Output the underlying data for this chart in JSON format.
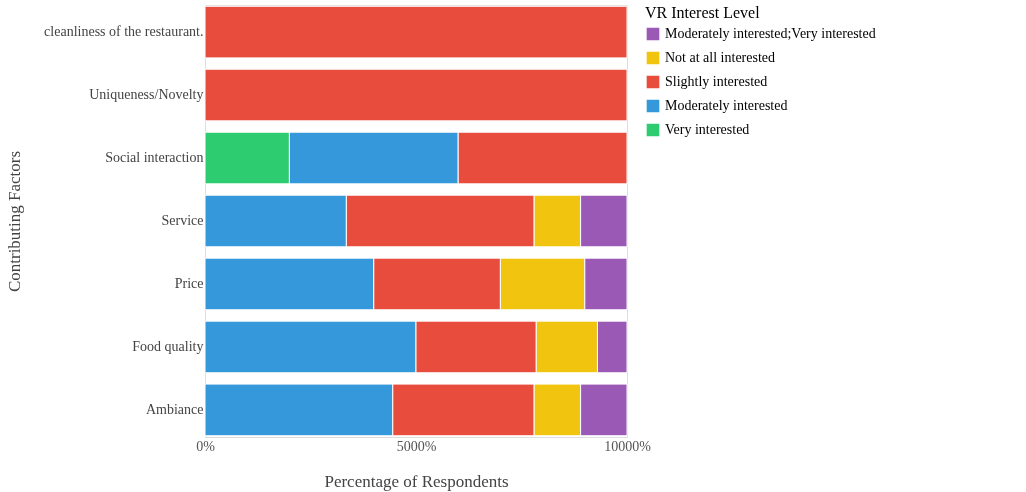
{
  "chart_data": {
    "type": "bar",
    "orientation": "horizontal",
    "stacked": true,
    "xlabel": "Percentage of Respondents",
    "ylabel": "Contributing Factors",
    "legend_title": "VR Interest Level",
    "categories": [
      "cleanliness of the restaurant.",
      "Uniqueness/Novelty",
      "Social interaction",
      "Service",
      "Price",
      "Food quality",
      "Ambiance"
    ],
    "series": [
      {
        "name": "Very interested",
        "color": "#2ecc71",
        "values": [
          null,
          null,
          2000,
          null,
          null,
          null,
          null
        ]
      },
      {
        "name": "Moderately interested",
        "color": "#3498db",
        "values": [
          null,
          null,
          4000,
          3350,
          4000,
          5000,
          4450
        ]
      },
      {
        "name": "Slightly interested",
        "color": "#e74c3c",
        "values": [
          10000,
          10000,
          4000,
          4450,
          3000,
          2850,
          3350
        ]
      },
      {
        "name": "Not at all interested",
        "color": "#f1c40f",
        "values": [
          null,
          null,
          null,
          1100,
          2000,
          1450,
          1100
        ]
      },
      {
        "name": "Moderately interested;Very interested",
        "color": "#9b59b6",
        "values": [
          null,
          null,
          null,
          1100,
          1000,
          700,
          1100
        ]
      }
    ],
    "xlim": [
      0,
      10000
    ],
    "xticks": [
      {
        "value": 0,
        "label": "0%"
      },
      {
        "value": 5000,
        "label": "5000%"
      },
      {
        "value": 10000,
        "label": "10000%"
      }
    ],
    "grid": false,
    "legend": "top right"
  }
}
